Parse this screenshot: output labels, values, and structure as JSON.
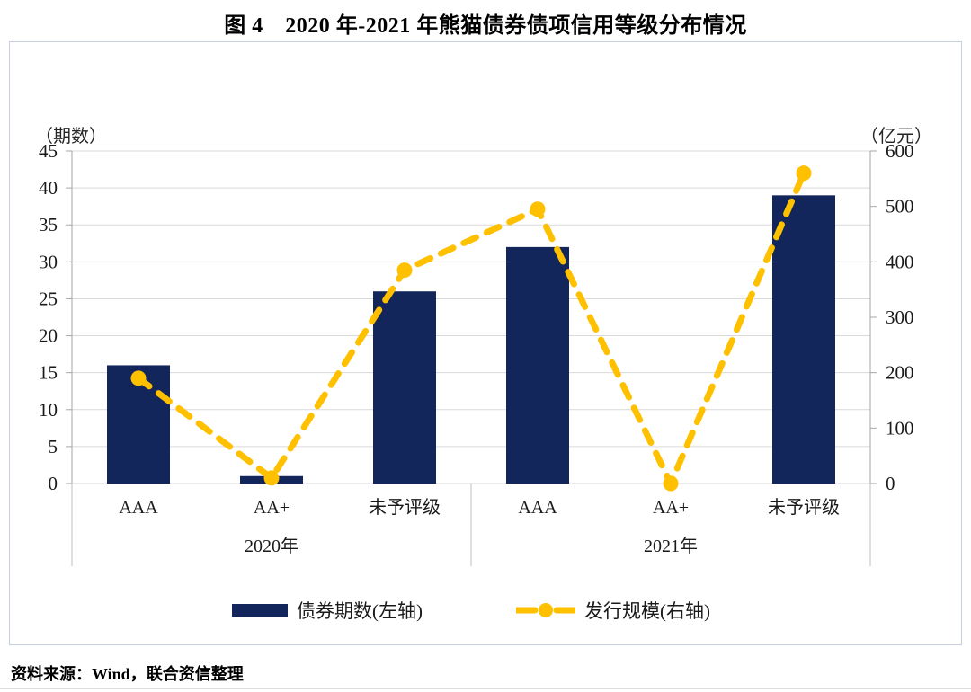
{
  "title": "图 4　2020 年-2021 年熊猫债券债项信用等级分布情况",
  "source_note": "资料来源：Wind，联合资信整理",
  "chart_data": {
    "type": "bar",
    "subtype": "dual-axis bar + dashed line",
    "title": "图 4 2020 年-2021 年熊猫债券债项信用等级分布情况",
    "categories": [
      "AAA",
      "AA+",
      "未予评级",
      "AAA",
      "AA+",
      "未予评级"
    ],
    "group_labels": [
      "2020年",
      "2021年"
    ],
    "series": [
      {
        "name": "债券期数(左轴)",
        "type": "bar",
        "axis": "left",
        "color": "#13265C",
        "values": [
          16,
          1,
          26,
          32,
          0,
          39
        ]
      },
      {
        "name": "发行规模(右轴)",
        "type": "line",
        "axis": "right",
        "color": "#FFC000",
        "line_style": "dashed",
        "marker": "circle",
        "values": [
          190,
          10,
          385,
          495,
          0,
          560
        ]
      }
    ],
    "left_axis": {
      "unit_label": "（期数）",
      "min": 0,
      "max": 45,
      "step": 5,
      "ticks": [
        45,
        40,
        35,
        30,
        25,
        20,
        15,
        10,
        5,
        0
      ]
    },
    "right_axis": {
      "unit_label": "（亿元）",
      "min": 0,
      "max": 600,
      "step": 100,
      "ticks": [
        600,
        500,
        400,
        300,
        200,
        100,
        0
      ]
    },
    "grid": true,
    "legend_position": "bottom"
  },
  "colors": {
    "bar": "#13265C",
    "line": "#FFC000",
    "grid": "#D9D9D9",
    "axis": "#A6A6A6",
    "separator": "#BFBFBF",
    "box_border": "#C7D0DF"
  }
}
